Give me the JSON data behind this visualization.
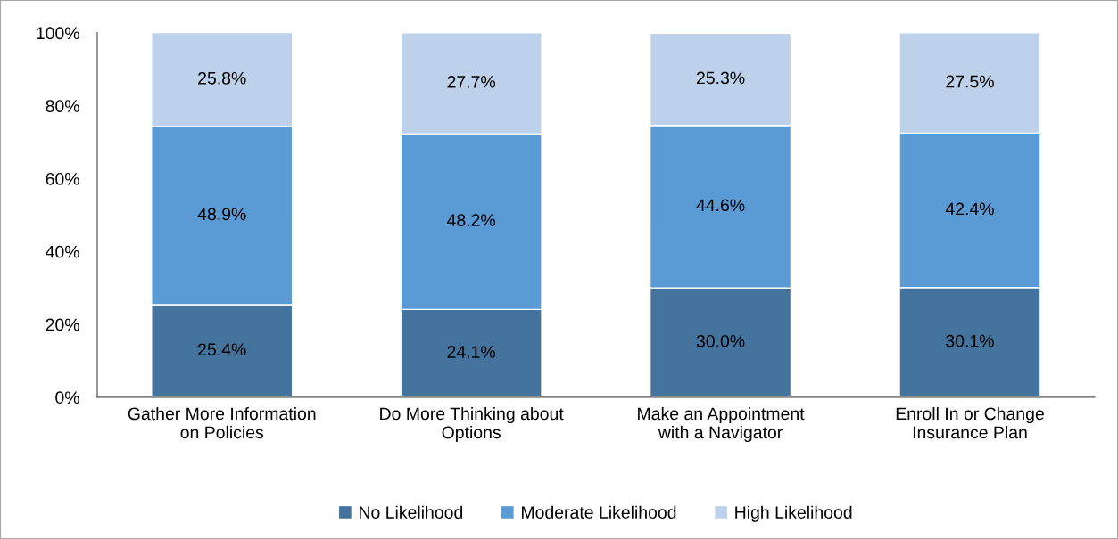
{
  "chart_data": {
    "type": "bar",
    "stacked": true,
    "categories": [
      "Gather More Information\non Policies",
      "Do More Thinking about\nOptions",
      "Make an Appointment\nwith a Navigator",
      "Enroll In or Change\nInsurance Plan"
    ],
    "series": [
      {
        "name": "No Likelihood",
        "color": "#44739d",
        "values": [
          25.4,
          24.1,
          30.0,
          30.1
        ],
        "value_labels": [
          "25.4%",
          "24.1%",
          "30.0%",
          "30.1%"
        ]
      },
      {
        "name": "Moderate Likelihood",
        "color": "#5b9bd5",
        "values": [
          48.9,
          48.2,
          44.6,
          42.4
        ],
        "value_labels": [
          "48.9%",
          "48.2%",
          "44.6%",
          "42.4%"
        ]
      },
      {
        "name": "High Likelihood",
        "color": "#bdd1ea",
        "values": [
          25.8,
          27.7,
          25.3,
          27.5
        ],
        "value_labels": [
          "25.8%",
          "27.7%",
          "25.3%",
          "27.5%"
        ]
      }
    ],
    "ylim": [
      0,
      100
    ],
    "yticks": [
      {
        "value": 0,
        "label": "0%"
      },
      {
        "value": 20,
        "label": "20%"
      },
      {
        "value": 40,
        "label": "40%"
      },
      {
        "value": 60,
        "label": "60%"
      },
      {
        "value": 80,
        "label": "80%"
      },
      {
        "value": 100,
        "label": "100%"
      }
    ],
    "grid": false,
    "legend": "bottom"
  }
}
